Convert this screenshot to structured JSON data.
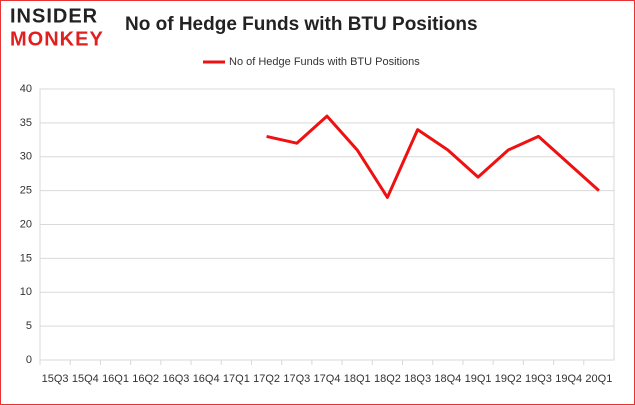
{
  "logo": {
    "top": "INSIDER",
    "bottom": "MONKEY"
  },
  "chart_data": {
    "type": "line",
    "title": "No of Hedge Funds with BTU Positions",
    "categories": [
      "15Q3",
      "15Q4",
      "16Q1",
      "16Q2",
      "16Q3",
      "16Q4",
      "17Q1",
      "17Q2",
      "17Q3",
      "17Q4",
      "18Q1",
      "18Q2",
      "18Q3",
      "18Q4",
      "19Q1",
      "19Q2",
      "19Q3",
      "19Q4",
      "20Q1"
    ],
    "series": [
      {
        "name": "No of Hedge Funds with BTU Positions",
        "color": "#ee1111",
        "values": [
          null,
          null,
          null,
          null,
          null,
          null,
          null,
          33,
          32,
          36,
          31,
          24,
          34,
          31,
          27,
          31,
          33,
          29,
          25
        ]
      }
    ],
    "ylim": [
      0,
      40
    ],
    "yticks": [
      0,
      5,
      10,
      15,
      20,
      25,
      30,
      35,
      40
    ],
    "grid": true,
    "legend": "top"
  }
}
